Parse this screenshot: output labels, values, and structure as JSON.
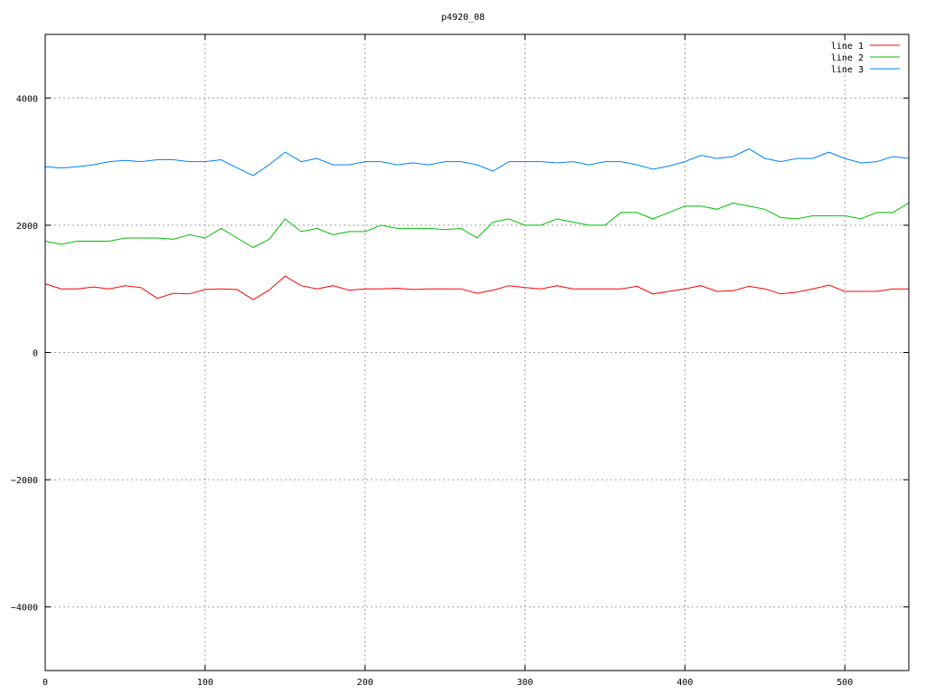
{
  "chart_data": {
    "type": "line",
    "title": "p4920_08",
    "xlabel": "",
    "ylabel": "",
    "xlim": [
      0,
      540
    ],
    "ylim": [
      -5000,
      5000
    ],
    "xticks": [
      0,
      100,
      200,
      300,
      400,
      500
    ],
    "yticks": [
      -4000,
      -2000,
      0,
      2000,
      4000
    ],
    "grid": true,
    "legend_position": "top-right",
    "x": [
      0,
      10,
      20,
      30,
      40,
      50,
      60,
      70,
      80,
      90,
      100,
      110,
      120,
      130,
      140,
      150,
      160,
      170,
      180,
      190,
      200,
      210,
      220,
      230,
      240,
      250,
      260,
      270,
      280,
      290,
      300,
      310,
      320,
      330,
      340,
      350,
      360,
      370,
      380,
      390,
      400,
      410,
      420,
      430,
      440,
      450,
      460,
      470,
      480,
      490,
      500,
      510,
      520,
      530,
      540
    ],
    "series": [
      {
        "name": "line 1",
        "color": "#ff0000",
        "values": [
          1080,
          1000,
          1000,
          1030,
          1000,
          1050,
          1020,
          850,
          930,
          920,
          990,
          1000,
          990,
          830,
          980,
          1200,
          1050,
          1000,
          1050,
          980,
          1000,
          1000,
          1010,
          990,
          1000,
          1000,
          1000,
          930,
          980,
          1050,
          1020,
          1000,
          1050,
          1000,
          1000,
          1000,
          1000,
          1040,
          920,
          960,
          1000,
          1050,
          960,
          970,
          1040,
          1000,
          920,
          950,
          1000,
          1060,
          960,
          960,
          960,
          1000,
          1000
        ]
      },
      {
        "name": "line 2",
        "color": "#00c000",
        "values": [
          1750,
          1700,
          1750,
          1750,
          1750,
          1800,
          1800,
          1800,
          1780,
          1850,
          1800,
          1950,
          1800,
          1650,
          1780,
          2100,
          1900,
          1950,
          1850,
          1900,
          1900,
          2000,
          1950,
          1950,
          1950,
          1930,
          1950,
          1800,
          2050,
          2100,
          2000,
          2000,
          2100,
          2050,
          2000,
          2000,
          2200,
          2200,
          2100,
          2200,
          2300,
          2300,
          2250,
          2350,
          2300,
          2250,
          2120,
          2100,
          2150,
          2150,
          2150,
          2100,
          2200,
          2200,
          2350
        ]
      },
      {
        "name": "line 3",
        "color": "#0080ff",
        "values": [
          2920,
          2900,
          2920,
          2950,
          3000,
          3020,
          3000,
          3030,
          3030,
          3000,
          3000,
          3030,
          2900,
          2780,
          2950,
          3150,
          3000,
          3050,
          2950,
          2950,
          3000,
          3000,
          2950,
          2980,
          2950,
          3000,
          3000,
          2950,
          2850,
          3000,
          3000,
          3000,
          2980,
          3000,
          2950,
          3000,
          3000,
          2950,
          2880,
          2930,
          3000,
          3100,
          3050,
          3080,
          3200,
          3050,
          3000,
          3050,
          3050,
          3150,
          3050,
          2980,
          3000,
          3080,
          3050
        ]
      }
    ]
  }
}
